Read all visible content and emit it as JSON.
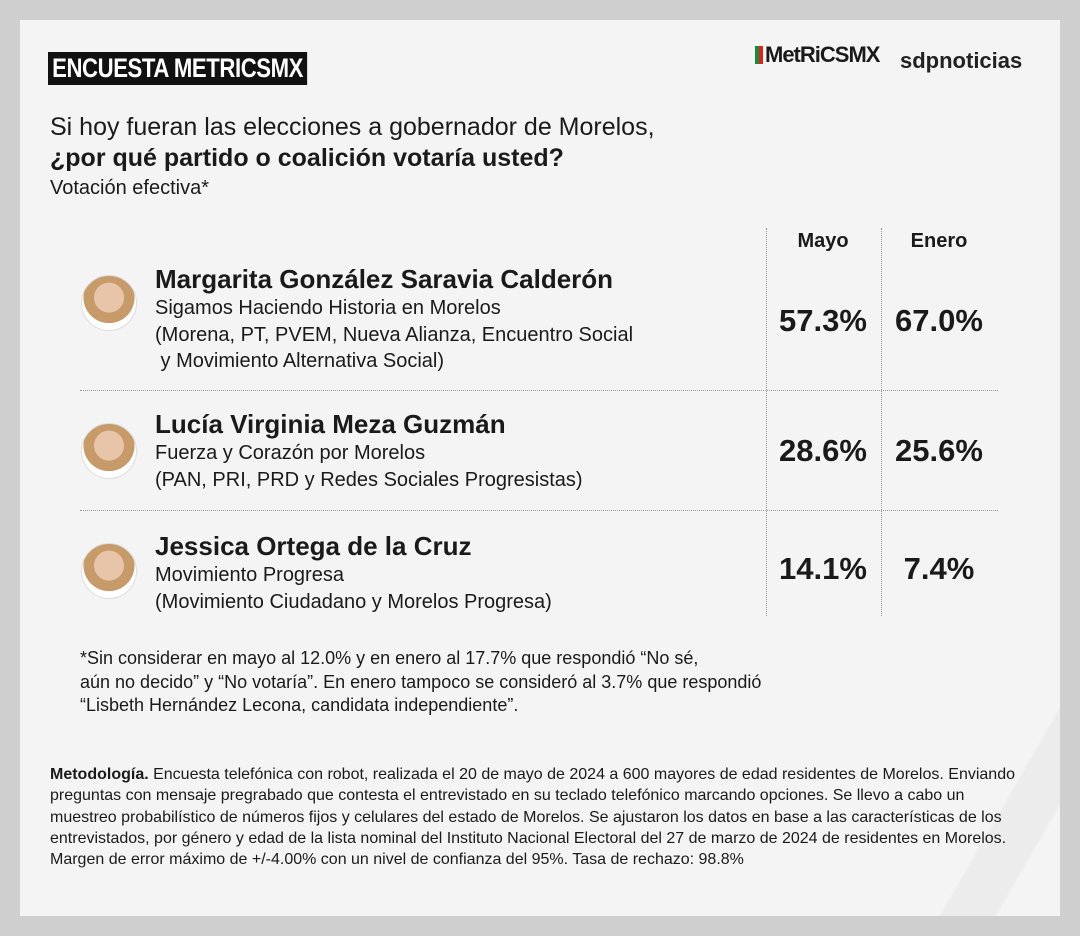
{
  "header": {
    "tag": "ENCUESTA METRICSMX",
    "logo_metrics": "MetRiCSMX",
    "logo_sdp": "sdpnoticias"
  },
  "question": {
    "line1": "Si hoy fueran las elecciones a gobernador de Morelos,",
    "line2": "¿por qué partido o coalición votaría usted?",
    "subtitle": "Votación efectiva*"
  },
  "chart_data": {
    "type": "table",
    "columns": [
      "Mayo",
      "Enero"
    ],
    "rows": [
      {
        "name": "Margarita González Saravia Calderón",
        "coalition": "Sigamos Haciendo Historia en Morelos",
        "parties": "(Morena, PT, PVEM, Nueva Alianza, Encuentro Social\n y Movimiento Alternativa Social)",
        "mayo": "57.3%",
        "enero": "67.0%"
      },
      {
        "name": "Lucía Virginia Meza Guzmán",
        "coalition": "Fuerza y Corazón por Morelos",
        "parties": "(PAN, PRI, PRD y Redes Sociales Progresistas)",
        "mayo": "28.6%",
        "enero": "25.6%"
      },
      {
        "name": "Jessica Ortega de la Cruz",
        "coalition": "Movimiento Progresa",
        "parties": "(Movimiento Ciudadano y Morelos Progresa)",
        "mayo": "14.1%",
        "enero": "7.4%"
      }
    ]
  },
  "footnote": "*Sin considerar en mayo al 12.0% y en enero al 17.7% que respondió “No sé,\naún no decido” y “No votaría”. En enero tampoco se consideró al 3.7% que respondió\n“Lisbeth Hernández Lecona, candidata independiente”.",
  "methodology": {
    "label": "Metodología.",
    "text": " Encuesta telefónica con robot, realizada el 20 de mayo de 2024 a 600 mayores de edad residentes de Morelos. Enviando preguntas con mensaje pregrabado que contesta el entrevistado en su teclado telefónico marcando opciones. Se llevo a cabo un muestreo probabilístico de números fijos y celulares del estado de Morelos. Se ajustaron los datos en base a las características de los entrevistados, por género y edad de la lista nominal del Instituto Nacional Electoral del 27 de marzo de 2024 de residentes en Morelos. Margen de error máximo de +/-4.00% con un nivel de confianza del 95%. Tasa de rechazo: 98.8%"
  }
}
